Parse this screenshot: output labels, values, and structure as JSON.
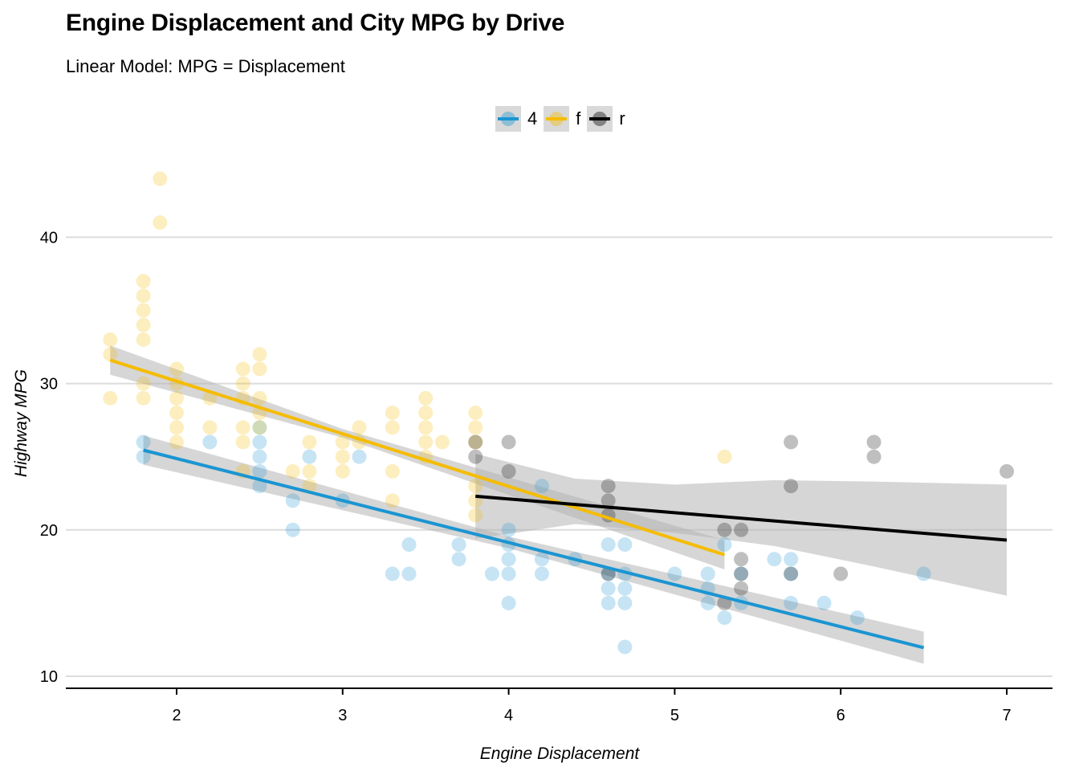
{
  "chart_data": {
    "type": "scatter",
    "title": "Engine Displacement and City MPG by Drive",
    "subtitle": "Linear Model: MPG = Displacement",
    "xlabel": "Engine Displacement",
    "ylabel": "Highway MPG",
    "xlim": [
      1.35,
      7.25
    ],
    "ylim": [
      9.2,
      45.5
    ],
    "x_ticks": [
      2,
      3,
      4,
      5,
      6,
      7
    ],
    "y_ticks": [
      10,
      20,
      30,
      40
    ],
    "grid": "horizontal",
    "legend_position": "top",
    "series": [
      {
        "name": "4",
        "color": "#1b95d2",
        "points": [
          [
            1.8,
            26
          ],
          [
            1.8,
            25
          ],
          [
            2.2,
            26
          ],
          [
            2.5,
            27
          ],
          [
            2.5,
            26
          ],
          [
            2.5,
            25
          ],
          [
            2.5,
            24
          ],
          [
            2.5,
            23
          ],
          [
            2.7,
            22
          ],
          [
            2.7,
            20
          ],
          [
            2.8,
            25
          ],
          [
            3.0,
            22
          ],
          [
            3.1,
            25
          ],
          [
            3.3,
            17
          ],
          [
            3.4,
            19
          ],
          [
            3.4,
            17
          ],
          [
            3.7,
            19
          ],
          [
            3.7,
            18
          ],
          [
            3.9,
            17
          ],
          [
            4.0,
            20
          ],
          [
            4.0,
            19
          ],
          [
            4.0,
            18
          ],
          [
            4.0,
            17
          ],
          [
            4.0,
            15
          ],
          [
            4.2,
            18
          ],
          [
            4.2,
            17
          ],
          [
            4.2,
            23
          ],
          [
            4.4,
            18
          ],
          [
            4.6,
            19
          ],
          [
            4.6,
            17
          ],
          [
            4.6,
            16
          ],
          [
            4.6,
            15
          ],
          [
            4.7,
            19
          ],
          [
            4.7,
            17
          ],
          [
            4.7,
            16
          ],
          [
            4.7,
            15
          ],
          [
            4.7,
            12
          ],
          [
            5.0,
            17
          ],
          [
            5.2,
            17
          ],
          [
            5.2,
            16
          ],
          [
            5.2,
            15
          ],
          [
            5.3,
            19
          ],
          [
            5.3,
            14
          ],
          [
            5.4,
            17
          ],
          [
            5.4,
            15
          ],
          [
            5.6,
            18
          ],
          [
            5.7,
            18
          ],
          [
            5.7,
            17
          ],
          [
            5.7,
            15
          ],
          [
            5.9,
            15
          ],
          [
            6.1,
            14
          ],
          [
            6.5,
            17
          ]
        ],
        "fit": {
          "x0": 1.8,
          "x1": 6.5,
          "y0": 25.45,
          "y1": 11.95
        },
        "ci": [
          [
            1.8,
            24.45,
            26.45
          ],
          [
            4.0,
            18.75,
            19.55
          ],
          [
            6.5,
            10.85,
            13.05
          ]
        ]
      },
      {
        "name": "f",
        "color": "#f5bc00",
        "points": [
          [
            1.6,
            33
          ],
          [
            1.6,
            32
          ],
          [
            1.6,
            29
          ],
          [
            1.8,
            37
          ],
          [
            1.8,
            36
          ],
          [
            1.8,
            35
          ],
          [
            1.8,
            34
          ],
          [
            1.8,
            33
          ],
          [
            1.8,
            30
          ],
          [
            1.8,
            29
          ],
          [
            1.9,
            44
          ],
          [
            1.9,
            41
          ],
          [
            2.0,
            31
          ],
          [
            2.0,
            30
          ],
          [
            2.0,
            29
          ],
          [
            2.0,
            28
          ],
          [
            2.0,
            27
          ],
          [
            2.0,
            26
          ],
          [
            2.2,
            29
          ],
          [
            2.2,
            27
          ],
          [
            2.4,
            31
          ],
          [
            2.4,
            30
          ],
          [
            2.4,
            29
          ],
          [
            2.4,
            27
          ],
          [
            2.4,
            26
          ],
          [
            2.4,
            24
          ],
          [
            2.5,
            32
          ],
          [
            2.5,
            31
          ],
          [
            2.5,
            29
          ],
          [
            2.5,
            28
          ],
          [
            2.5,
            27
          ],
          [
            2.7,
            24
          ],
          [
            2.8,
            26
          ],
          [
            2.8,
            24
          ],
          [
            2.8,
            23
          ],
          [
            3.0,
            26
          ],
          [
            3.0,
            25
          ],
          [
            3.0,
            24
          ],
          [
            3.1,
            27
          ],
          [
            3.1,
            26
          ],
          [
            3.3,
            28
          ],
          [
            3.3,
            27
          ],
          [
            3.3,
            24
          ],
          [
            3.3,
            22
          ],
          [
            3.5,
            29
          ],
          [
            3.5,
            28
          ],
          [
            3.5,
            27
          ],
          [
            3.5,
            26
          ],
          [
            3.5,
            25
          ],
          [
            3.6,
            26
          ],
          [
            3.8,
            28
          ],
          [
            3.8,
            27
          ],
          [
            3.8,
            26
          ],
          [
            3.8,
            23
          ],
          [
            3.8,
            22
          ],
          [
            3.8,
            21
          ],
          [
            5.3,
            25
          ]
        ],
        "fit": {
          "x0": 1.6,
          "x1": 5.3,
          "y0": 31.6,
          "y1": 18.3
        },
        "ci": [
          [
            1.6,
            30.6,
            32.6
          ],
          [
            3.0,
            26.3,
            26.9
          ],
          [
            5.3,
            17.3,
            19.3
          ]
        ]
      },
      {
        "name": "r",
        "color": "#000000",
        "points": [
          [
            3.8,
            26
          ],
          [
            3.8,
            25
          ],
          [
            4.0,
            26
          ],
          [
            4.0,
            24
          ],
          [
            4.6,
            23
          ],
          [
            4.6,
            22
          ],
          [
            4.6,
            21
          ],
          [
            4.6,
            17
          ],
          [
            5.3,
            20
          ],
          [
            5.3,
            15
          ],
          [
            5.4,
            20
          ],
          [
            5.4,
            18
          ],
          [
            5.4,
            17
          ],
          [
            5.4,
            16
          ],
          [
            5.7,
            26
          ],
          [
            5.7,
            23
          ],
          [
            5.7,
            17
          ],
          [
            6.0,
            17
          ],
          [
            6.2,
            26
          ],
          [
            6.2,
            25
          ],
          [
            7.0,
            24
          ]
        ],
        "fit": {
          "x0": 3.8,
          "x1": 7.0,
          "y0": 22.3,
          "y1": 19.3
        },
        "ci": [
          [
            3.8,
            19.4,
            25.2
          ],
          [
            4.4,
            20.4,
            23.5
          ],
          [
            5.0,
            19.8,
            23.1
          ],
          [
            5.6,
            18.9,
            23.4
          ],
          [
            6.2,
            17.5,
            23.3
          ],
          [
            7.0,
            15.5,
            23.1
          ]
        ]
      }
    ],
    "style": {
      "grid_color": "#dcdcdc",
      "ci_fill": "#b4b4b4",
      "ci_opacity": 0.55,
      "point_opacity": 0.25
    }
  }
}
